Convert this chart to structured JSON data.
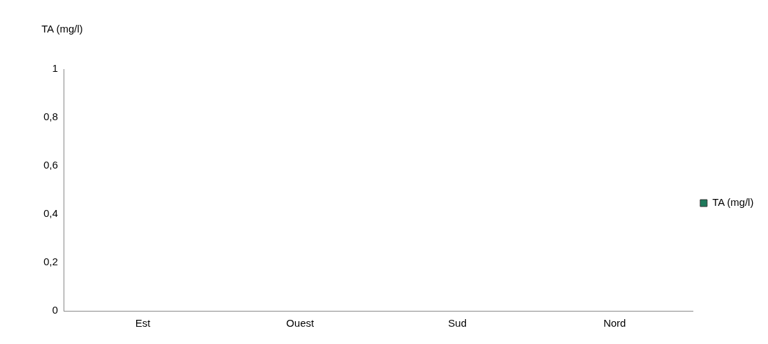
{
  "chart_data": {
    "type": "bar",
    "ylabel": "TA (mg/l)",
    "categories": [
      "Est",
      "Ouest",
      "Sud",
      "Nord"
    ],
    "series": [
      {
        "name": "TA (mg/l)",
        "color": "#1f7a5c",
        "values": [
          0,
          0,
          0,
          0
        ]
      }
    ],
    "ylim": [
      0,
      1
    ],
    "yticks": [
      0,
      {
        "value": 0.2,
        "label": "0,2"
      },
      {
        "value": 0.4,
        "label": "0,4"
      },
      {
        "value": 0.6,
        "label": "0,6"
      },
      {
        "value": 0.8,
        "label": "0,8"
      },
      1
    ],
    "grid": false,
    "legend": "right"
  }
}
